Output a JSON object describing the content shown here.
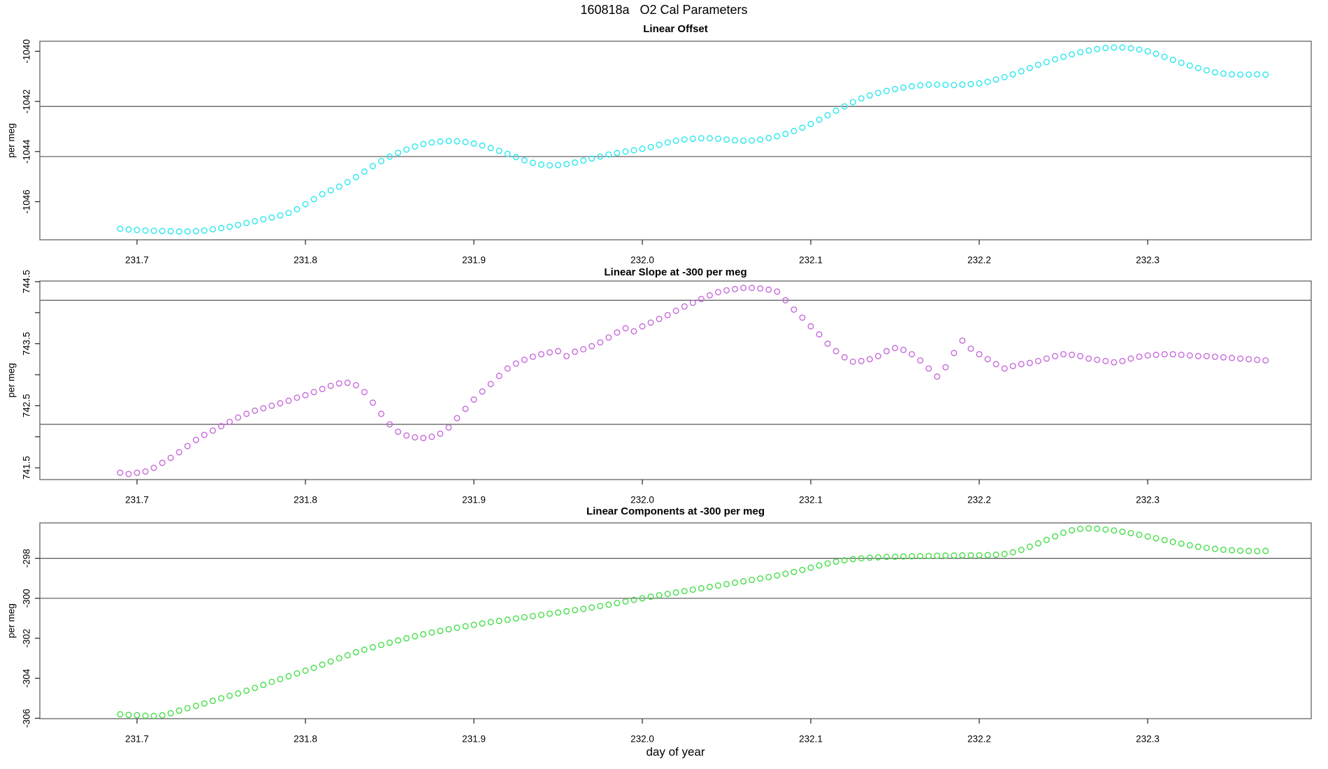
{
  "figure": {
    "title": "160818a   O2 Cal Parameters",
    "xlabel": "day of year",
    "background": "#ffffff",
    "box_color": "#6e6e6e",
    "ref_line_color": "#565656",
    "tick_color": "#222222",
    "x_ticks": [
      {
        "v": 231.7,
        "label": "231.7"
      },
      {
        "v": 231.8,
        "label": "231.8"
      },
      {
        "v": 231.9,
        "label": "231.9"
      },
      {
        "v": 232.0,
        "label": "232.0"
      },
      {
        "v": 232.1,
        "label": "232.1"
      },
      {
        "v": 232.2,
        "label": "232.2"
      },
      {
        "v": 232.3,
        "label": "232.3"
      }
    ],
    "xlim": [
      231.642,
      232.397
    ]
  },
  "chart_data": [
    {
      "type": "scatter",
      "title": "Linear Offset",
      "ylabel": "per meg",
      "marker": "open-circle",
      "color": "#2be7ef",
      "legend": "none",
      "grid": "two horizontal reference lines",
      "ylim": [
        -1047.52,
        -1039.6
      ],
      "yticks": [
        {
          "v": -1040,
          "label": "-1040"
        },
        {
          "v": -1042,
          "label": "-1042"
        },
        {
          "v": -1044,
          "label": "-1044"
        },
        {
          "v": -1046,
          "label": "-1046"
        }
      ],
      "minor_yticks": [],
      "ref_lines": [
        -1042.2,
        -1044.2
      ],
      "x_start": 231.69,
      "x_step": 0.005,
      "values": [
        -1047.08,
        -1047.11,
        -1047.13,
        -1047.15,
        -1047.16,
        -1047.17,
        -1047.18,
        -1047.19,
        -1047.19,
        -1047.18,
        -1047.15,
        -1047.1,
        -1047.05,
        -1047.0,
        -1046.93,
        -1046.85,
        -1046.78,
        -1046.7,
        -1046.63,
        -1046.55,
        -1046.45,
        -1046.3,
        -1046.1,
        -1045.9,
        -1045.7,
        -1045.55,
        -1045.4,
        -1045.22,
        -1045.02,
        -1044.8,
        -1044.58,
        -1044.38,
        -1044.2,
        -1044.05,
        -1043.92,
        -1043.8,
        -1043.7,
        -1043.64,
        -1043.6,
        -1043.58,
        -1043.59,
        -1043.62,
        -1043.68,
        -1043.76,
        -1043.86,
        -1043.97,
        -1044.09,
        -1044.22,
        -1044.35,
        -1044.45,
        -1044.52,
        -1044.55,
        -1044.54,
        -1044.5,
        -1044.44,
        -1044.36,
        -1044.28,
        -1044.2,
        -1044.12,
        -1044.06,
        -1044.0,
        -1043.95,
        -1043.89,
        -1043.82,
        -1043.73,
        -1043.64,
        -1043.57,
        -1043.52,
        -1043.49,
        -1043.47,
        -1043.47,
        -1043.49,
        -1043.52,
        -1043.55,
        -1043.57,
        -1043.56,
        -1043.52,
        -1043.46,
        -1043.39,
        -1043.3,
        -1043.18,
        -1043.05,
        -1042.9,
        -1042.73,
        -1042.55,
        -1042.37,
        -1042.2,
        -1042.03,
        -1041.88,
        -1041.76,
        -1041.66,
        -1041.58,
        -1041.51,
        -1041.45,
        -1041.4,
        -1041.36,
        -1041.33,
        -1041.33,
        -1041.34,
        -1041.35,
        -1041.33,
        -1041.31,
        -1041.28,
        -1041.22,
        -1041.13,
        -1041.03,
        -1040.92,
        -1040.8,
        -1040.67,
        -1040.54,
        -1040.43,
        -1040.32,
        -1040.22,
        -1040.12,
        -1040.04,
        -1039.97,
        -1039.91,
        -1039.87,
        -1039.85,
        -1039.85,
        -1039.88,
        -1039.93,
        -1040.0,
        -1040.1,
        -1040.22,
        -1040.34,
        -1040.46,
        -1040.57,
        -1040.67,
        -1040.76,
        -1040.84,
        -1040.89,
        -1040.92,
        -1040.93,
        -1040.93,
        -1040.92,
        -1040.93
      ]
    },
    {
      "type": "scatter",
      "title": "Linear Slope at -300 per meg",
      "ylabel": "per meg",
      "marker": "open-circle",
      "color": "#c76bdb",
      "legend": "none",
      "grid": "two horizontal reference lines",
      "ylim": [
        741.31,
        744.51
      ],
      "yticks": [
        {
          "v": 744.5,
          "label": "744.5"
        },
        {
          "v": 743.5,
          "label": "743.5"
        },
        {
          "v": 742.5,
          "label": "742.5"
        },
        {
          "v": 741.5,
          "label": "741.5"
        }
      ],
      "minor_yticks": [
        744.0,
        743.0,
        742.0
      ],
      "ref_lines": [
        744.2,
        742.2
      ],
      "x_start": 231.69,
      "x_step": 0.005,
      "values": [
        741.42,
        741.4,
        741.42,
        741.44,
        741.5,
        741.58,
        741.66,
        741.75,
        741.85,
        741.95,
        742.03,
        742.1,
        742.17,
        742.24,
        742.31,
        742.37,
        742.42,
        742.46,
        742.5,
        742.54,
        742.58,
        742.63,
        742.67,
        742.72,
        742.77,
        742.82,
        742.86,
        742.87,
        742.83,
        742.72,
        742.55,
        742.37,
        742.2,
        742.08,
        742.02,
        741.99,
        741.98,
        742.0,
        742.05,
        742.15,
        742.3,
        742.45,
        742.6,
        742.73,
        742.85,
        742.98,
        743.1,
        743.18,
        743.24,
        743.29,
        743.33,
        743.36,
        743.38,
        743.3,
        743.37,
        743.41,
        743.46,
        743.52,
        743.6,
        743.68,
        743.75,
        743.7,
        743.78,
        743.84,
        743.9,
        743.96,
        744.03,
        744.1,
        744.16,
        744.22,
        744.28,
        744.33,
        744.36,
        744.38,
        744.4,
        744.4,
        744.39,
        744.37,
        744.34,
        744.2,
        744.05,
        743.92,
        743.78,
        743.65,
        743.5,
        743.38,
        743.28,
        743.21,
        743.22,
        743.25,
        743.3,
        743.38,
        743.43,
        743.4,
        743.33,
        743.23,
        743.1,
        742.97,
        743.12,
        743.35,
        743.55,
        743.42,
        743.33,
        743.25,
        743.17,
        743.1,
        743.14,
        743.17,
        743.19,
        743.22,
        743.26,
        743.3,
        743.33,
        743.32,
        743.3,
        743.26,
        743.24,
        743.22,
        743.2,
        743.22,
        743.26,
        743.29,
        743.31,
        743.32,
        743.33,
        743.33,
        743.32,
        743.31,
        743.3,
        743.3,
        743.29,
        743.28,
        743.27,
        743.26,
        743.25,
        743.24,
        743.23
      ]
    },
    {
      "type": "scatter",
      "title": "Linear Components at -300 per meg",
      "ylabel": "per meg",
      "marker": "open-circle",
      "color": "#46de49",
      "legend": "none",
      "grid": "two horizontal reference lines",
      "ylim": [
        -306.02,
        -296.23
      ],
      "yticks": [
        {
          "v": -298,
          "label": "-298"
        },
        {
          "v": -300,
          "label": "-300"
        },
        {
          "v": -302,
          "label": "-302"
        },
        {
          "v": -304,
          "label": "-304"
        },
        {
          "v": -306,
          "label": "-306"
        }
      ],
      "minor_yticks": [],
      "ref_lines": [
        -298,
        -300
      ],
      "x_start": 231.69,
      "x_step": 0.005,
      "values": [
        -305.8,
        -305.83,
        -305.85,
        -305.87,
        -305.88,
        -305.85,
        -305.75,
        -305.62,
        -305.5,
        -305.38,
        -305.26,
        -305.13,
        -305.0,
        -304.88,
        -304.76,
        -304.62,
        -304.48,
        -304.33,
        -304.18,
        -304.04,
        -303.9,
        -303.76,
        -303.62,
        -303.48,
        -303.32,
        -303.16,
        -303.0,
        -302.85,
        -302.7,
        -302.57,
        -302.45,
        -302.33,
        -302.22,
        -302.11,
        -302.0,
        -301.9,
        -301.8,
        -301.71,
        -301.63,
        -301.55,
        -301.47,
        -301.4,
        -301.33,
        -301.26,
        -301.19,
        -301.13,
        -301.07,
        -301.01,
        -300.95,
        -300.89,
        -300.83,
        -300.77,
        -300.71,
        -300.65,
        -300.59,
        -300.53,
        -300.46,
        -300.39,
        -300.32,
        -300.24,
        -300.16,
        -300.08,
        -300.0,
        -299.92,
        -299.85,
        -299.78,
        -299.71,
        -299.64,
        -299.57,
        -299.5,
        -299.43,
        -299.36,
        -299.29,
        -299.22,
        -299.15,
        -299.08,
        -299.01,
        -298.94,
        -298.86,
        -298.77,
        -298.68,
        -298.58,
        -298.47,
        -298.36,
        -298.26,
        -298.17,
        -298.1,
        -298.04,
        -298.0,
        -297.97,
        -297.95,
        -297.93,
        -297.92,
        -297.91,
        -297.9,
        -297.89,
        -297.88,
        -297.87,
        -297.86,
        -297.86,
        -297.85,
        -297.85,
        -297.85,
        -297.84,
        -297.82,
        -297.78,
        -297.7,
        -297.58,
        -297.42,
        -297.25,
        -297.08,
        -296.9,
        -296.72,
        -296.6,
        -296.53,
        -296.5,
        -296.52,
        -296.56,
        -296.61,
        -296.67,
        -296.74,
        -296.82,
        -296.91,
        -297.0,
        -297.09,
        -297.18,
        -297.27,
        -297.35,
        -297.42,
        -297.48,
        -297.53,
        -297.57,
        -297.6,
        -297.62,
        -297.63,
        -297.64,
        -297.63
      ]
    }
  ]
}
